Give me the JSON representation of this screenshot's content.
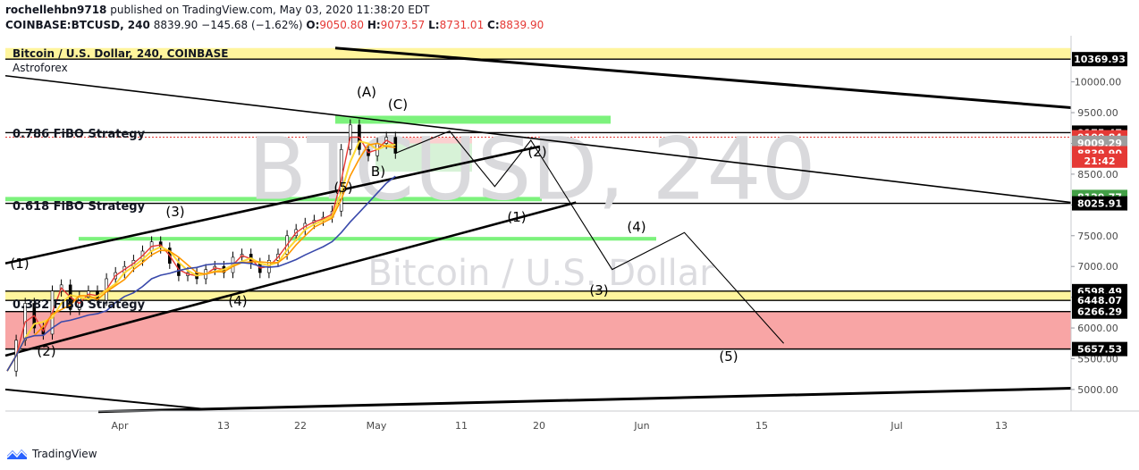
{
  "header": {
    "publisher": "rochellehbn9718",
    "published_text": "published on TradingView.com, May 03, 2020 11:38:20 EDT",
    "symbol": "COINBASE:BTCUSD, 240",
    "last": "8839.90",
    "change": "−145.68 (−1.62%)",
    "o_label": "O:",
    "o_value": "9050.80",
    "h_label": "H:",
    "h_value": "9073.57",
    "l_label": "L:",
    "l_value": "8731.01",
    "c_label": "C:",
    "c_value": "8839.90"
  },
  "legend": {
    "title": "Bitcoin / U.S. Dollar, 240, COINBASE",
    "indicator": "Astroforex"
  },
  "watermark": {
    "ticker": "BTCUSD, 240",
    "name": "Bitcoin / U.S. Dollar"
  },
  "annotations": {
    "fibo_786": "0.786 FiBO Strategy",
    "fibo_618": "0.618 FiBO Strategy",
    "fibo_382": "0.382 FiBO Strategy"
  },
  "wave_labels": [
    "(1)",
    "(2)",
    "(3)",
    "(4)",
    "(5)",
    "(A)",
    "B)",
    "(C)"
  ],
  "projection_labels": [
    "(1)",
    "(2)",
    "(3)",
    "(4)",
    "(5)"
  ],
  "price_labels": [
    {
      "text": "10369.93",
      "bg": "#000000",
      "fg": "#ffffff"
    },
    {
      "text": "9175.47",
      "bg": "#000000",
      "fg": "#ffffff"
    },
    {
      "text": "9100.84",
      "bg": "#e53935",
      "fg": "#ffffff"
    },
    {
      "text": "9009.29",
      "bg": "#9e9e9e",
      "fg": "#ffffff"
    },
    {
      "text": "8839.90",
      "bg": "#e53935",
      "fg": "#ffffff"
    },
    {
      "text": "21:42",
      "bg": "#e53935",
      "fg": "#ffffff"
    },
    {
      "text": "8129.77",
      "bg": "#43a047",
      "fg": "#ffffff"
    },
    {
      "text": "8025.91",
      "bg": "#000000",
      "fg": "#ffffff"
    },
    {
      "text": "6598.49",
      "bg": "#000000",
      "fg": "#ffffff"
    },
    {
      "text": "6448.07",
      "bg": "#000000",
      "fg": "#ffffff"
    },
    {
      "text": "6266.29",
      "bg": "#000000",
      "fg": "#ffffff"
    },
    {
      "text": "5657.53",
      "bg": "#000000",
      "fg": "#ffffff"
    }
  ],
  "footer": {
    "brand": "TradingView"
  },
  "chart_data": {
    "type": "candlestick",
    "y_ticks": [
      5000,
      5500,
      6000,
      6500,
      7000,
      7500,
      8000,
      8500,
      9000,
      9500,
      10000
    ],
    "y_tick_labels": [
      "5000.00",
      "5500.00",
      "6000.00",
      "6500.00",
      "7000.00",
      "7500.00",
      "8000.00",
      "8500.00",
      "9000.00",
      "9500.00",
      "10000.00"
    ],
    "x_tick_labels": [
      "Apr",
      "13",
      "22",
      "May",
      "11",
      "20",
      "Jun",
      "15",
      "Jul",
      "13"
    ],
    "ylim": [
      4650,
      10750
    ],
    "grid": false,
    "colors": {
      "zone_yellow": "#fff59d",
      "zone_red": "#f8a5a5",
      "zone_green": "#7cf27c",
      "ma_blue": "#3949ab",
      "ma_orange": "#ff9800",
      "ma_yellow": "#fdd835",
      "ma_red": "#e53935"
    },
    "horizontal_levels": [
      10369.93,
      9175.47,
      9100.84,
      8025.91,
      6598.49,
      6448.07,
      6266.29,
      5657.53
    ],
    "price_path": [
      [
        0,
        5300
      ],
      [
        1,
        5800
      ],
      [
        2,
        6400
      ],
      [
        3,
        6000
      ],
      [
        4,
        5900
      ],
      [
        5,
        6600
      ],
      [
        6,
        6700
      ],
      [
        7,
        6300
      ],
      [
        8,
        6500
      ],
      [
        9,
        6600
      ],
      [
        10,
        6450
      ],
      [
        11,
        6800
      ],
      [
        12,
        6900
      ],
      [
        13,
        7000
      ],
      [
        14,
        7100
      ],
      [
        15,
        7250
      ],
      [
        16,
        7400
      ],
      [
        17,
        7300
      ],
      [
        18,
        7050
      ],
      [
        19,
        6850
      ],
      [
        20,
        6900
      ],
      [
        21,
        6800
      ],
      [
        22,
        6950
      ],
      [
        23,
        7000
      ],
      [
        24,
        6900
      ],
      [
        25,
        7150
      ],
      [
        26,
        7200
      ],
      [
        27,
        7050
      ],
      [
        28,
        6900
      ],
      [
        29,
        7100
      ],
      [
        30,
        7200
      ],
      [
        31,
        7500
      ],
      [
        32,
        7600
      ],
      [
        33,
        7700
      ],
      [
        34,
        7750
      ],
      [
        35,
        7800
      ],
      [
        36,
        7900
      ],
      [
        37,
        8900
      ],
      [
        38,
        9300
      ],
      [
        39,
        8900
      ],
      [
        40,
        8800
      ],
      [
        41,
        9000
      ],
      [
        42,
        9100
      ],
      [
        43,
        8840
      ]
    ],
    "projection_path": [
      [
        43,
        8840
      ],
      [
        49,
        9200
      ],
      [
        54,
        8300
      ],
      [
        58,
        9050
      ],
      [
        67,
        6950
      ],
      [
        75,
        7550
      ],
      [
        86,
        5750
      ]
    ]
  }
}
